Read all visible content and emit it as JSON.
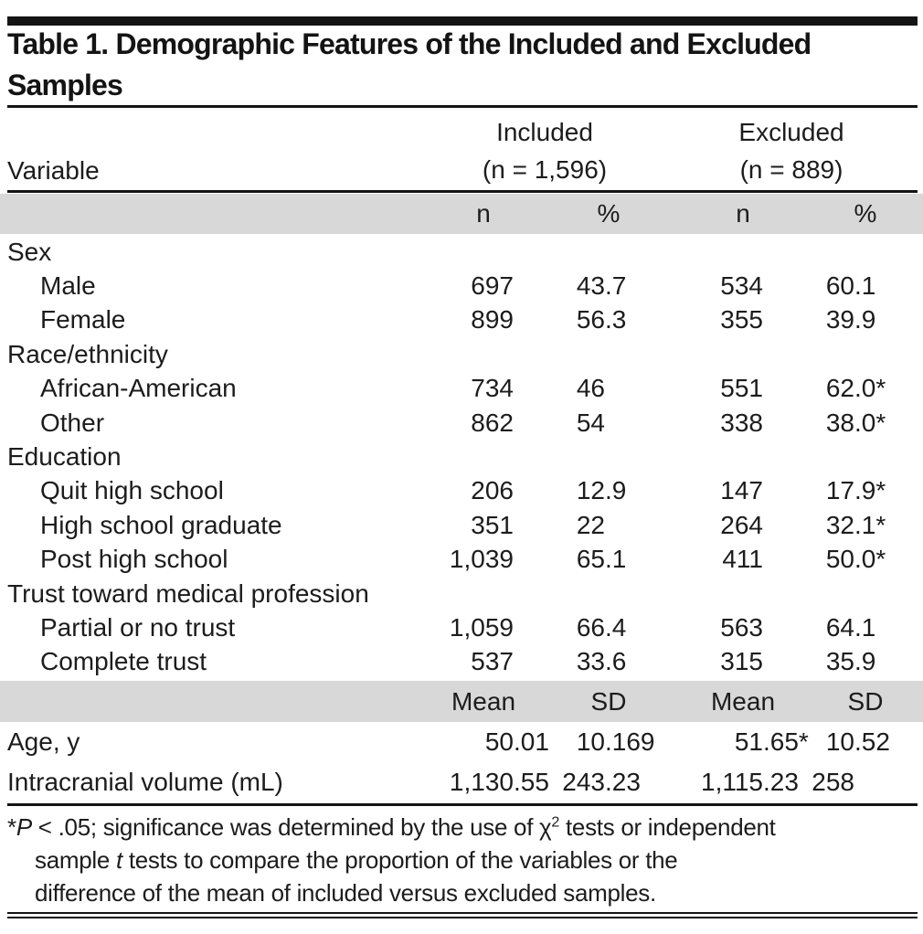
{
  "title": {
    "line1": "Table 1. Demographic Features of the Included and Excluded",
    "line2": "Samples"
  },
  "header": {
    "variable_label": "Variable",
    "groups": [
      {
        "name": "Included",
        "n": "(n = 1,596)"
      },
      {
        "name": "Excluded",
        "n": "(n = 889)"
      }
    ],
    "count_cols": [
      "n",
      "%",
      "n",
      "%"
    ]
  },
  "sections": [
    {
      "label": "Sex",
      "rows": [
        {
          "label": "Male",
          "values": [
            "697",
            "43.7",
            "534",
            "60.1"
          ]
        },
        {
          "label": "Female",
          "values": [
            "899",
            "56.3",
            "355",
            "39.9"
          ]
        }
      ]
    },
    {
      "label": "Race/ethnicity",
      "rows": [
        {
          "label": "African-American",
          "values": [
            "734",
            "46",
            "551",
            "62.0*"
          ]
        },
        {
          "label": "Other",
          "values": [
            "862",
            "54",
            "338",
            "38.0*"
          ]
        }
      ]
    },
    {
      "label": "Education",
      "rows": [
        {
          "label": "Quit high school",
          "values": [
            "206",
            "12.9",
            "147",
            "17.9*"
          ]
        },
        {
          "label": "High school graduate",
          "values": [
            "351",
            "22",
            "264",
            "32.1*"
          ]
        },
        {
          "label": "Post high school",
          "values": [
            "1,039",
            "65.1",
            "411",
            "50.0*"
          ]
        }
      ]
    },
    {
      "label": "Trust toward medical profession",
      "rows": [
        {
          "label": "Partial or no trust",
          "values": [
            "1,059",
            "66.4",
            "563",
            "64.1"
          ]
        },
        {
          "label": "Complete trust",
          "values": [
            "537",
            "33.6",
            "315",
            "35.9"
          ]
        }
      ]
    }
  ],
  "stats": {
    "header": [
      "Mean",
      "SD",
      "Mean",
      "SD"
    ],
    "rows": [
      {
        "label": "Age, y",
        "values": [
          "50.01",
          "10.169",
          "51.65*",
          "10.52"
        ]
      },
      {
        "label": "Intracranial volume (mL)",
        "values": [
          "1,130.55",
          "243.23",
          "1,115.23",
          "258"
        ]
      }
    ]
  },
  "footnote_lines": [
    {
      "indent": false,
      "parts": [
        {
          "t": "*",
          "s": "n"
        },
        {
          "t": "P",
          "s": "i"
        },
        {
          "t": " < .05; significance was determined by the use of χ",
          "s": "n"
        },
        {
          "t": "2",
          "s": "sup"
        },
        {
          "t": " tests or independent",
          "s": "n"
        }
      ]
    },
    {
      "indent": true,
      "parts": [
        {
          "t": "sample ",
          "s": "n"
        },
        {
          "t": "t",
          "s": "i"
        },
        {
          "t": " tests to compare the proportion of the variables or the",
          "s": "n"
        }
      ]
    },
    {
      "indent": true,
      "parts": [
        {
          "t": "difference of the mean of included versus excluded samples.",
          "s": "n"
        }
      ]
    }
  ],
  "colors": {
    "band_gray": "#d8d8d8",
    "rule_black": "#141414",
    "text": "#1c1c1c"
  }
}
